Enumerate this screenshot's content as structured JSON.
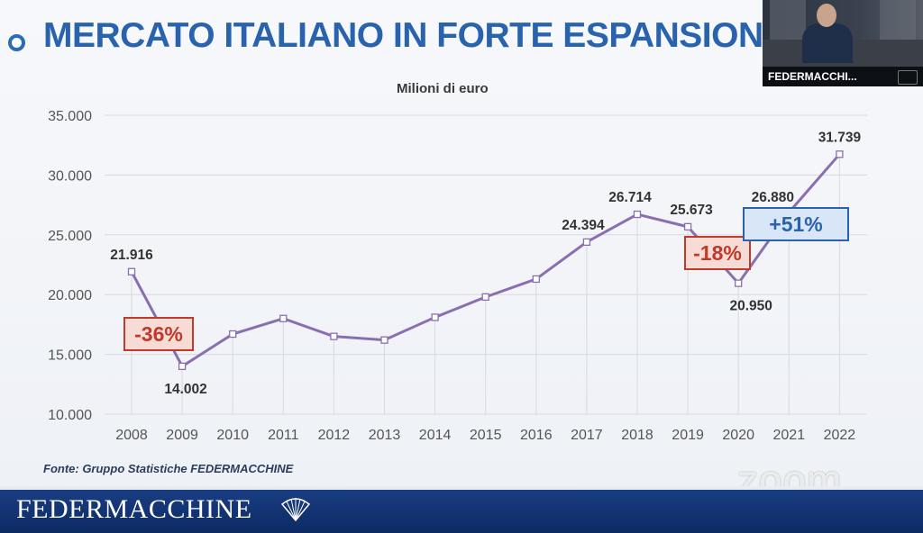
{
  "header": {
    "title": "MERCATO ITALIANO IN FORTE ESPANSIONE"
  },
  "chart_data": {
    "type": "line",
    "subtitle": "Milioni di euro",
    "x": [
      "2008",
      "2009",
      "2010",
      "2011",
      "2012",
      "2013",
      "2014",
      "2015",
      "2016",
      "2017",
      "2018",
      "2019",
      "2020",
      "2021",
      "2022"
    ],
    "values": [
      21916,
      14002,
      16700,
      18000,
      16500,
      16200,
      18100,
      19800,
      21300,
      24394,
      26714,
      25673,
      20950,
      26880,
      31739
    ],
    "data_labels": [
      {
        "x": "2008",
        "text": "21.916"
      },
      {
        "x": "2009",
        "text": "14.002"
      },
      {
        "x": "2017",
        "text": "24.394"
      },
      {
        "x": "2018",
        "text": "26.714"
      },
      {
        "x": "2019",
        "text": "25.673"
      },
      {
        "x": "2020",
        "text": "20.950"
      },
      {
        "x": "2021",
        "text": "26.880"
      },
      {
        "x": "2022",
        "text": "31.739"
      }
    ],
    "y_ticks": [
      "10.000",
      "15.000",
      "20.000",
      "25.000",
      "30.000",
      "35.000"
    ],
    "ylim": [
      10000,
      35000
    ],
    "grid": true,
    "line_color": "#8a6fb0",
    "annotations": [
      {
        "text": "-36%",
        "style": "red",
        "color": "#c0392b",
        "fill": "#f7dcd6"
      },
      {
        "text": "-18%",
        "style": "red",
        "color": "#c0392b",
        "fill": "#f7dcd6"
      },
      {
        "text": "+51%",
        "style": "blue",
        "color": "#2a63ad",
        "fill": "#d8e6f7"
      }
    ]
  },
  "source": "Fonte: Gruppo Statistiche FEDERMACCHINE",
  "video": {
    "participant_name": "FEDERMACCHI..."
  },
  "watermark": "zoom",
  "footer": {
    "brand": "FEDERMACCHINE"
  }
}
